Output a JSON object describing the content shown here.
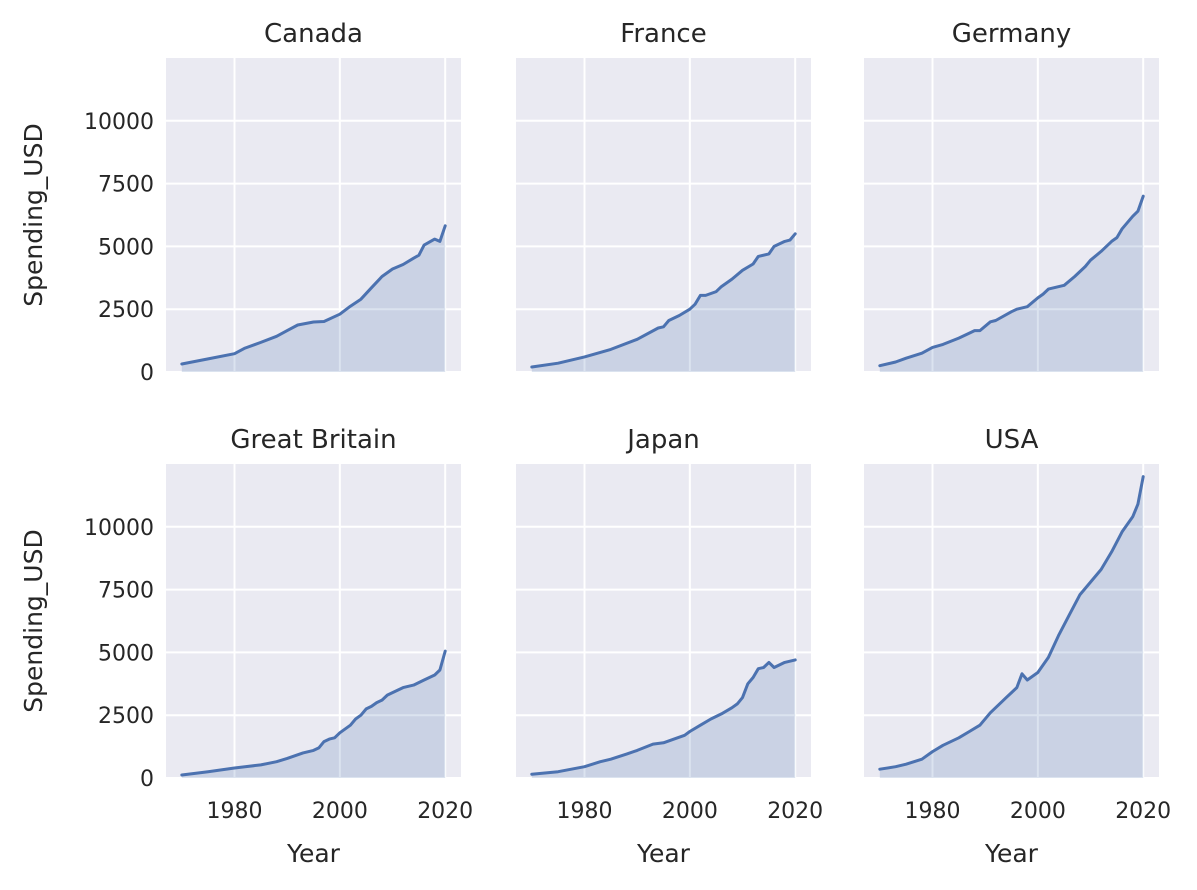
{
  "chart_data": {
    "type": "area",
    "x_label": "Year",
    "y_label": "Spending_USD",
    "x_ticks": [
      1980,
      2000,
      2020
    ],
    "y_ticks": [
      0,
      2500,
      5000,
      7500,
      10000
    ],
    "x_range": [
      1967,
      2023
    ],
    "y_range": [
      0,
      12500
    ],
    "grid": true,
    "colors": {
      "line": "#4c72b0",
      "panel": "#eaeaf2"
    },
    "facets": [
      {
        "name": "Canada",
        "points": [
          [
            1970,
            320
          ],
          [
            1975,
            520
          ],
          [
            1980,
            730
          ],
          [
            1982,
            950
          ],
          [
            1985,
            1180
          ],
          [
            1988,
            1420
          ],
          [
            1990,
            1650
          ],
          [
            1992,
            1870
          ],
          [
            1995,
            1990
          ],
          [
            1997,
            2010
          ],
          [
            2000,
            2300
          ],
          [
            2002,
            2620
          ],
          [
            2004,
            2900
          ],
          [
            2006,
            3350
          ],
          [
            2008,
            3800
          ],
          [
            2010,
            4100
          ],
          [
            2012,
            4280
          ],
          [
            2014,
            4530
          ],
          [
            2015,
            4650
          ],
          [
            2016,
            5050
          ],
          [
            2018,
            5290
          ],
          [
            2019,
            5200
          ],
          [
            2020,
            5820
          ]
        ]
      },
      {
        "name": "France",
        "points": [
          [
            1970,
            200
          ],
          [
            1975,
            350
          ],
          [
            1980,
            600
          ],
          [
            1985,
            900
          ],
          [
            1990,
            1300
          ],
          [
            1994,
            1750
          ],
          [
            1995,
            1800
          ],
          [
            1996,
            2050
          ],
          [
            1998,
            2250
          ],
          [
            2000,
            2500
          ],
          [
            2001,
            2700
          ],
          [
            2002,
            3050
          ],
          [
            2003,
            3050
          ],
          [
            2005,
            3200
          ],
          [
            2006,
            3400
          ],
          [
            2008,
            3700
          ],
          [
            2010,
            4050
          ],
          [
            2012,
            4300
          ],
          [
            2013,
            4600
          ],
          [
            2015,
            4700
          ],
          [
            2016,
            5000
          ],
          [
            2018,
            5200
          ],
          [
            2019,
            5250
          ],
          [
            2020,
            5500
          ]
        ]
      },
      {
        "name": "Germany",
        "points": [
          [
            1970,
            250
          ],
          [
            1973,
            400
          ],
          [
            1975,
            550
          ],
          [
            1978,
            750
          ],
          [
            1980,
            980
          ],
          [
            1982,
            1100
          ],
          [
            1985,
            1350
          ],
          [
            1987,
            1550
          ],
          [
            1988,
            1650
          ],
          [
            1989,
            1650
          ],
          [
            1991,
            2000
          ],
          [
            1992,
            2050
          ],
          [
            1995,
            2400
          ],
          [
            1996,
            2500
          ],
          [
            1998,
            2600
          ],
          [
            2000,
            2950
          ],
          [
            2001,
            3100
          ],
          [
            2002,
            3300
          ],
          [
            2004,
            3400
          ],
          [
            2005,
            3450
          ],
          [
            2007,
            3800
          ],
          [
            2009,
            4200
          ],
          [
            2010,
            4450
          ],
          [
            2012,
            4800
          ],
          [
            2014,
            5200
          ],
          [
            2015,
            5350
          ],
          [
            2016,
            5700
          ],
          [
            2018,
            6200
          ],
          [
            2019,
            6400
          ],
          [
            2020,
            7000
          ]
        ]
      },
      {
        "name": "Great Britain",
        "points": [
          [
            1970,
            120
          ],
          [
            1975,
            250
          ],
          [
            1980,
            400
          ],
          [
            1982,
            450
          ],
          [
            1985,
            520
          ],
          [
            1988,
            650
          ],
          [
            1990,
            780
          ],
          [
            1993,
            1000
          ],
          [
            1995,
            1100
          ],
          [
            1996,
            1200
          ],
          [
            1997,
            1450
          ],
          [
            1998,
            1550
          ],
          [
            1999,
            1600
          ],
          [
            2000,
            1800
          ],
          [
            2002,
            2100
          ],
          [
            2003,
            2350
          ],
          [
            2004,
            2500
          ],
          [
            2005,
            2750
          ],
          [
            2006,
            2850
          ],
          [
            2007,
            3000
          ],
          [
            2008,
            3100
          ],
          [
            2009,
            3300
          ],
          [
            2010,
            3400
          ],
          [
            2012,
            3600
          ],
          [
            2014,
            3700
          ],
          [
            2016,
            3900
          ],
          [
            2018,
            4100
          ],
          [
            2019,
            4300
          ],
          [
            2020,
            5050
          ]
        ]
      },
      {
        "name": "Japan",
        "points": [
          [
            1970,
            150
          ],
          [
            1975,
            250
          ],
          [
            1980,
            450
          ],
          [
            1983,
            650
          ],
          [
            1985,
            750
          ],
          [
            1988,
            950
          ],
          [
            1990,
            1100
          ],
          [
            1993,
            1350
          ],
          [
            1995,
            1400
          ],
          [
            1997,
            1550
          ],
          [
            1999,
            1700
          ],
          [
            2000,
            1850
          ],
          [
            2002,
            2100
          ],
          [
            2004,
            2350
          ],
          [
            2006,
            2550
          ],
          [
            2008,
            2800
          ],
          [
            2009,
            2950
          ],
          [
            2010,
            3200
          ],
          [
            2011,
            3750
          ],
          [
            2012,
            4000
          ],
          [
            2013,
            4350
          ],
          [
            2014,
            4400
          ],
          [
            2015,
            4600
          ],
          [
            2016,
            4400
          ],
          [
            2018,
            4600
          ],
          [
            2020,
            4700
          ]
        ]
      },
      {
        "name": "USA",
        "points": [
          [
            1970,
            350
          ],
          [
            1973,
            450
          ],
          [
            1975,
            550
          ],
          [
            1978,
            750
          ],
          [
            1980,
            1050
          ],
          [
            1982,
            1300
          ],
          [
            1985,
            1600
          ],
          [
            1987,
            1850
          ],
          [
            1989,
            2100
          ],
          [
            1991,
            2600
          ],
          [
            1993,
            3000
          ],
          [
            1994,
            3200
          ],
          [
            1995,
            3400
          ],
          [
            1996,
            3600
          ],
          [
            1997,
            4150
          ],
          [
            1998,
            3900
          ],
          [
            2000,
            4200
          ],
          [
            2002,
            4800
          ],
          [
            2004,
            5700
          ],
          [
            2006,
            6500
          ],
          [
            2008,
            7300
          ],
          [
            2010,
            7800
          ],
          [
            2012,
            8300
          ],
          [
            2014,
            9000
          ],
          [
            2016,
            9800
          ],
          [
            2018,
            10400
          ],
          [
            2019,
            10900
          ],
          [
            2020,
            12000
          ]
        ]
      }
    ]
  }
}
